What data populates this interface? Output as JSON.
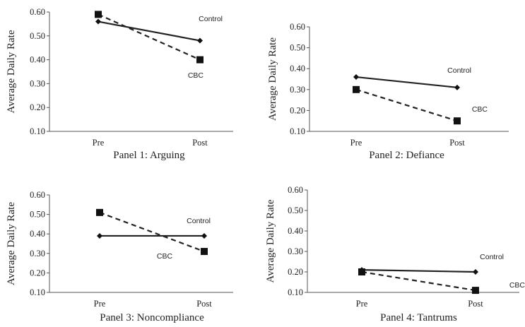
{
  "chart_data": [
    {
      "type": "line",
      "title": "Panel 1: Arguing",
      "ylabel": "Average Daily Rate",
      "xlabel": "",
      "categories": [
        "Pre",
        "Post"
      ],
      "yticks": [
        "0.10",
        "0.20",
        "0.30",
        "0.40",
        "0.50",
        "0.60"
      ],
      "ylim": [
        0.1,
        0.6
      ],
      "grid": false,
      "series": [
        {
          "name": "Control",
          "values": [
            0.56,
            0.48
          ],
          "style": "solid",
          "marker": "diamond",
          "label_anchor": "end"
        },
        {
          "name": "CBC",
          "values": [
            0.59,
            0.4
          ],
          "style": "dashed",
          "marker": "square",
          "label_anchor": "end"
        }
      ]
    },
    {
      "type": "line",
      "title": "Panel 2:  Defiance",
      "ylabel": "Average Daily Rate",
      "xlabel": "",
      "categories": [
        "Pre",
        "Post"
      ],
      "yticks": [
        "0.10",
        "0.20",
        "0.30",
        "0.40",
        "0.50",
        "0.60"
      ],
      "ylim": [
        0.1,
        0.6
      ],
      "grid": false,
      "series": [
        {
          "name": "Control",
          "values": [
            0.36,
            0.31
          ],
          "style": "solid",
          "marker": "diamond",
          "label_anchor": "end"
        },
        {
          "name": "CBC",
          "values": [
            0.3,
            0.15
          ],
          "style": "dashed",
          "marker": "square",
          "label_anchor": "end"
        }
      ]
    },
    {
      "type": "line",
      "title": "Panel 3:  Noncompliance",
      "ylabel": "Average Daily Rate",
      "xlabel": "",
      "categories": [
        "Pre",
        "Post"
      ],
      "yticks": [
        "0.10",
        "0.20",
        "0.30",
        "0.40",
        "0.50",
        "0.60"
      ],
      "ylim": [
        0.1,
        0.6
      ],
      "grid": false,
      "series": [
        {
          "name": "Control",
          "values": [
            0.39,
            0.39
          ],
          "style": "solid",
          "marker": "diamond",
          "label_anchor": "end"
        },
        {
          "name": "CBC",
          "values": [
            0.51,
            0.31
          ],
          "style": "dashed",
          "marker": "square",
          "label_anchor": "middle"
        }
      ]
    },
    {
      "type": "line",
      "title": "Panel 4: Tantrums",
      "ylabel": "Average Daily Rate",
      "xlabel": "",
      "categories": [
        "Pre",
        "Post"
      ],
      "yticks": [
        "0.10",
        "0.20",
        "0.30",
        "0.40",
        "0.50",
        "0.60"
      ],
      "ylim": [
        0.1,
        0.6
      ],
      "grid": false,
      "series": [
        {
          "name": "Control",
          "values": [
            0.21,
            0.2
          ],
          "style": "solid",
          "marker": "diamond",
          "label_anchor": "end"
        },
        {
          "name": "CBC",
          "values": [
            0.2,
            0.11
          ],
          "style": "dashed",
          "marker": "square",
          "label_anchor": "end"
        }
      ]
    }
  ]
}
